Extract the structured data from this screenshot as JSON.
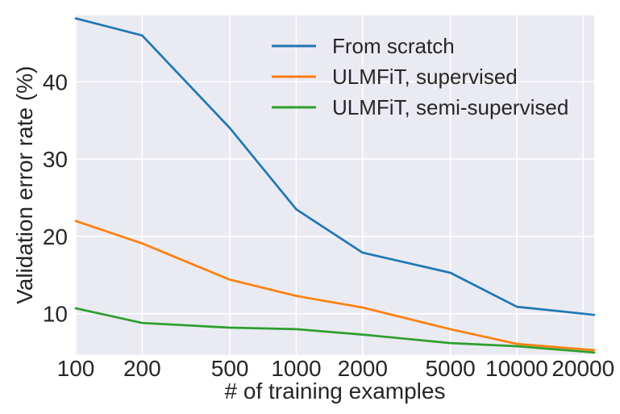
{
  "chart_data": {
    "type": "line",
    "title": "",
    "xlabel": "# of training examples",
    "ylabel": "Validation error rate (%)",
    "x_scale": "log",
    "x": [
      100,
      200,
      500,
      1000,
      2000,
      5000,
      10000,
      20000
    ],
    "x_tick_labels": [
      "100",
      "200",
      "500",
      "1000",
      "2000",
      "5000",
      "10000",
      "20000"
    ],
    "y_ticks": [
      10,
      20,
      30,
      40
    ],
    "y_tick_labels": [
      "10",
      "20",
      "30",
      "40"
    ],
    "xlim": [
      100,
      22450
    ],
    "ylim": [
      4.7,
      48.6
    ],
    "grid": true,
    "legend_position": "upper right",
    "series": [
      {
        "name": "From scratch",
        "color": "#1f77b4",
        "values": [
          48.2,
          46.0,
          34.0,
          23.5,
          17.9,
          15.3,
          10.9,
          10.0
        ]
      },
      {
        "name": "ULMFiT, supervised",
        "color": "#ff7f0e",
        "values": [
          22.0,
          19.1,
          14.4,
          12.3,
          10.8,
          8.0,
          6.1,
          5.4
        ]
      },
      {
        "name": "ULMFiT, semi-supervised",
        "color": "#2ca02c",
        "values": [
          10.7,
          8.8,
          8.2,
          8.0,
          7.3,
          6.2,
          5.8,
          5.1
        ]
      }
    ],
    "colors": {
      "plot_background": "#eaeaf2",
      "grid": "#ffffff",
      "text": "#262626",
      "figure_background": "#ffffff"
    }
  }
}
